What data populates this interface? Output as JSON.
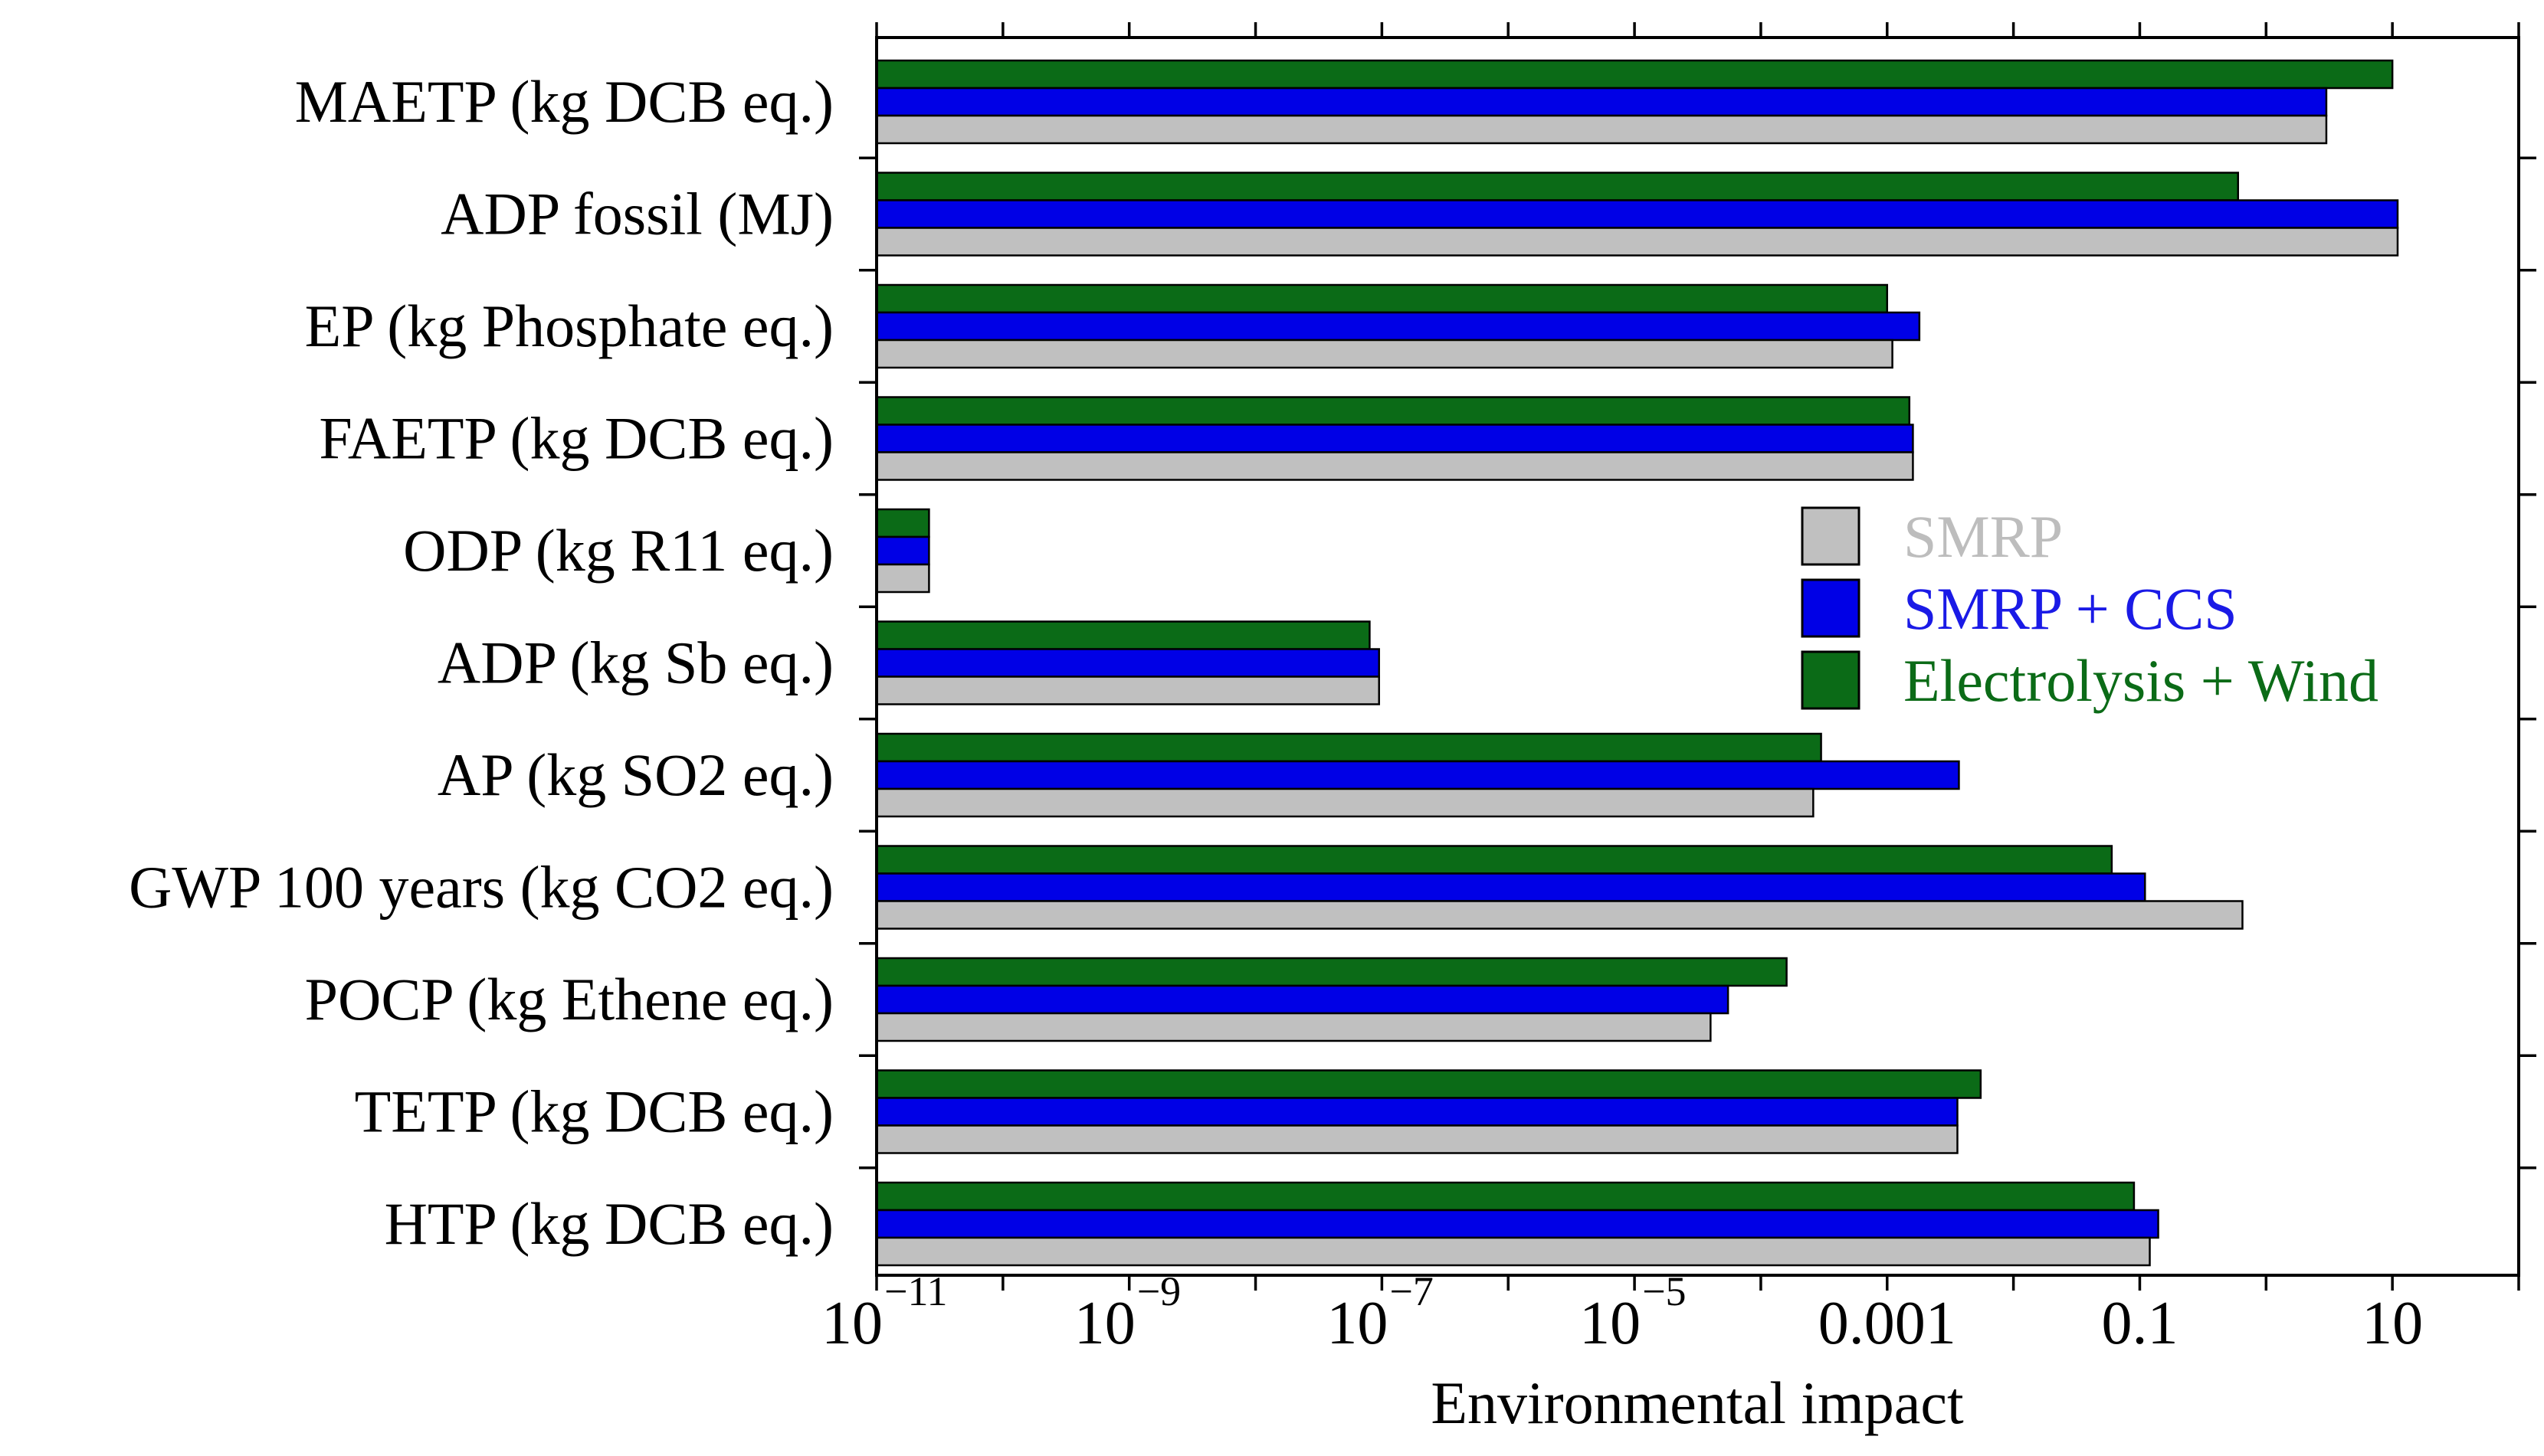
{
  "chart_data": {
    "type": "bar",
    "orientation": "horizontal",
    "title": "",
    "xlabel": "Environmental impact",
    "ylabel": "",
    "xscale": "log",
    "xlim_exp": [
      -11,
      2
    ],
    "xticks": [
      {
        "base": "10",
        "exp": "−11",
        "value": 1e-11
      },
      {
        "base": "10",
        "exp": "−9",
        "value": 1e-09
      },
      {
        "base": "10",
        "exp": "−7",
        "value": 1e-07
      },
      {
        "base": "10",
        "exp": "−5",
        "value": 1e-05
      },
      {
        "label": "0.001",
        "value": 0.001
      },
      {
        "label": "0.1",
        "value": 0.1
      },
      {
        "label": "10",
        "value": 10
      }
    ],
    "categories": [
      "MAETP (kg DCB eq.)",
      "ADP fossil (MJ)",
      "EP (kg Phosphate eq.)",
      "FAETP (kg DCB eq.)",
      "ODP (kg R11 eq.)",
      "ADP (kg Sb eq.)",
      "AP (kg SO2 eq.)",
      "GWP 100 years (kg CO2 eq.)",
      "POCP (kg Ethene eq.)",
      "TETP (kg DCB eq.)",
      "HTP (kg DCB eq.)"
    ],
    "series": [
      {
        "name": "Electrolysis + Wind",
        "color": "#0b6b17",
        "values": [
          10,
          0.6,
          0.001,
          0.0015,
          2.6e-11,
          8e-08,
          0.0003,
          0.06,
          0.00016,
          0.0055,
          0.09
        ]
      },
      {
        "name": "SMRP + CCS",
        "color": "#0000e6",
        "values": [
          3,
          11,
          0.0018,
          0.0016,
          2.6e-11,
          9.5e-08,
          0.0037,
          0.11,
          5.5e-05,
          0.0036,
          0.14
        ]
      },
      {
        "name": "SMRP",
        "color": "#c0c0c0",
        "values": [
          3,
          11,
          0.0011,
          0.0016,
          2.6e-11,
          9.5e-08,
          0.00026,
          0.65,
          4e-05,
          0.0036,
          0.12
        ]
      }
    ],
    "legend": {
      "position": "right-center",
      "items": [
        {
          "name": "SMRP",
          "color": "#c0c0c0",
          "text_color": "#bdbdbd"
        },
        {
          "name": "SMRP + CCS",
          "color": "#0000e6",
          "text_color": "#1a1ae6"
        },
        {
          "name": "Electrolysis + Wind",
          "color": "#0b6b17",
          "text_color": "#0b6b17"
        }
      ]
    }
  }
}
